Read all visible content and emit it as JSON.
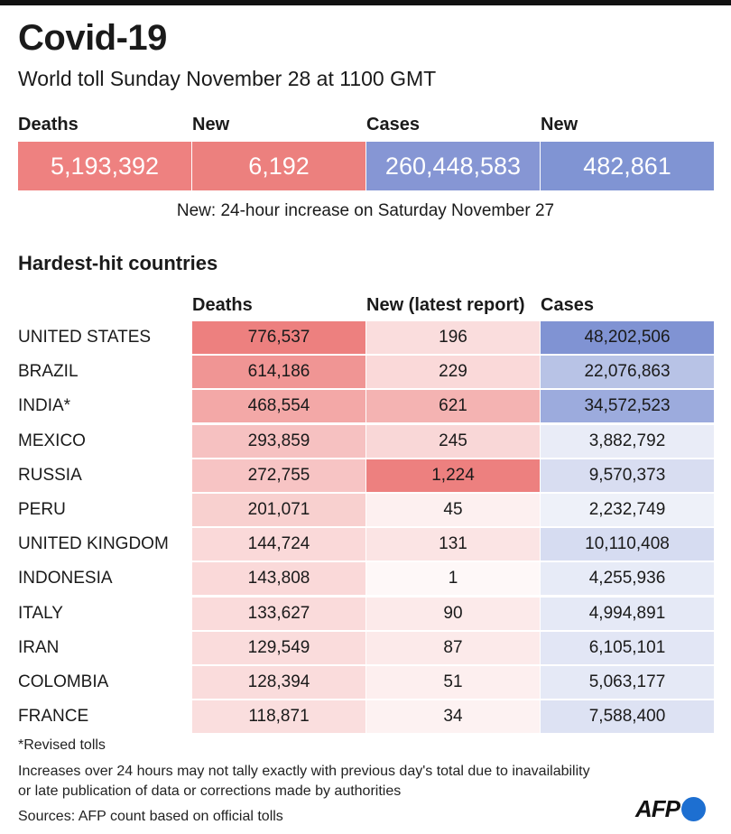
{
  "header": {
    "title": "Covid-19",
    "subtitle": "World toll Sunday November 28 at 1100 GMT"
  },
  "summary": {
    "deaths_label": "Deaths",
    "deaths_value": "5,193,392",
    "new_deaths_label": "New",
    "new_deaths_value": "6,192",
    "cases_label": "Cases",
    "cases_value": "260,448,583",
    "new_cases_label": "New",
    "new_cases_value": "482,861",
    "note": "New: 24-hour increase on Saturday November 27"
  },
  "table": {
    "section_title": "Hardest-hit countries",
    "columns": [
      "Deaths",
      "New (latest report)",
      "Cases"
    ],
    "rows": [
      {
        "country": "UNITED STATES",
        "deaths": "776,537",
        "new": "196",
        "cases": "48,202,506"
      },
      {
        "country": "BRAZIL",
        "deaths": "614,186",
        "new": "229",
        "cases": "22,076,863"
      },
      {
        "country": "INDIA*",
        "deaths": "468,554",
        "new": "621",
        "cases": "34,572,523"
      },
      {
        "country": "MEXICO",
        "deaths": "293,859",
        "new": "245",
        "cases": "3,882,792"
      },
      {
        "country": "RUSSIA",
        "deaths": "272,755",
        "new": "1,224",
        "cases": "9,570,373"
      },
      {
        "country": "PERU",
        "deaths": "201,071",
        "new": "45",
        "cases": "2,232,749"
      },
      {
        "country": "UNITED KINGDOM",
        "deaths": "144,724",
        "new": "131",
        "cases": "10,110,408"
      },
      {
        "country": "INDONESIA",
        "deaths": "143,808",
        "new": "1",
        "cases": "4,255,936"
      },
      {
        "country": "ITALY",
        "deaths": "133,627",
        "new": "90",
        "cases": "4,994,891"
      },
      {
        "country": "IRAN",
        "deaths": "129,549",
        "new": "87",
        "cases": "6,105,101"
      },
      {
        "country": "COLOMBIA",
        "deaths": "128,394",
        "new": "51",
        "cases": "5,063,177"
      },
      {
        "country": "FRANCE",
        "deaths": "118,871",
        "new": "34",
        "cases": "7,588,400"
      }
    ]
  },
  "footer": {
    "revised": "*Revised tolls",
    "disclaimer_line1": "Increases over 24 hours may not tally exactly with previous day's total due to inavailability",
    "disclaimer_line2": "or late publication of data or corrections made by authorities",
    "sources": "Sources: AFP count based on official tolls",
    "logo_text": "AFP"
  },
  "colors": {
    "deaths_accent": "#ee8180",
    "cases_accent": "#8194d3"
  }
}
